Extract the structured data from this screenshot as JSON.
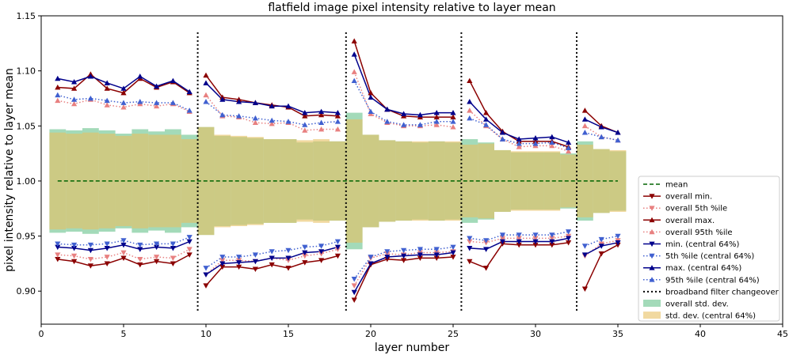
{
  "chart_data": {
    "type": "line",
    "title": "flatfield image pixel intensity relative to layer mean",
    "xlabel": "layer number",
    "ylabel": "pixel intensity relative to layer mean",
    "xlim": [
      0,
      45
    ],
    "ylim": [
      0.87,
      1.15
    ],
    "xticks": [
      "0",
      "5",
      "10",
      "15",
      "20",
      "25",
      "30",
      "35",
      "40",
      "45"
    ],
    "yticks": [
      "0.90",
      "0.95",
      "1.00",
      "1.05",
      "1.10",
      "1.15"
    ],
    "grid": false,
    "legend_position": "lower-right",
    "x": [
      1,
      2,
      3,
      4,
      5,
      6,
      7,
      8,
      9,
      10,
      11,
      12,
      13,
      14,
      15,
      16,
      17,
      18,
      19,
      20,
      21,
      22,
      23,
      24,
      25,
      26,
      27,
      28,
      29,
      30,
      31,
      32,
      33,
      34,
      35
    ],
    "segments": [
      [
        1,
        9
      ],
      [
        10,
        18
      ],
      [
        19,
        25
      ],
      [
        26,
        32
      ],
      [
        33,
        35
      ]
    ],
    "changeovers": [
      9.5,
      18.5,
      25.5,
      32.5
    ],
    "mean": {
      "name": "mean",
      "value": 1.0,
      "x_range": [
        1,
        35
      ]
    },
    "changeover_name": "broadband filter changeover",
    "series": [
      {
        "name": "overall min.",
        "color": "#8b0000",
        "style": "solid",
        "marker": "triangle-down",
        "values": [
          0.929,
          0.927,
          0.923,
          0.925,
          0.93,
          0.924,
          0.927,
          0.925,
          0.933,
          0.905,
          0.922,
          0.922,
          0.92,
          0.924,
          0.921,
          0.926,
          0.928,
          0.932,
          0.892,
          0.924,
          0.929,
          0.928,
          0.93,
          0.93,
          0.931,
          0.927,
          0.921,
          0.943,
          0.942,
          0.942,
          0.942,
          0.944,
          0.902,
          0.934,
          0.942
        ]
      },
      {
        "name": "overall 5th %ile",
        "color": "#e88080",
        "style": "dotted",
        "marker": "triangle-down",
        "values": [
          0.933,
          0.932,
          0.929,
          0.931,
          0.935,
          0.929,
          0.931,
          0.93,
          0.938,
          0.915,
          0.928,
          0.928,
          0.927,
          0.93,
          0.928,
          0.932,
          0.934,
          0.938,
          0.905,
          0.93,
          0.934,
          0.933,
          0.935,
          0.935,
          0.936,
          0.945,
          0.944,
          0.948,
          0.948,
          0.948,
          0.948,
          0.95,
          0.932,
          0.943,
          0.946
        ]
      },
      {
        "name": "overall max.",
        "color": "#8b0000",
        "style": "solid",
        "marker": "triangle-up",
        "values": [
          1.085,
          1.084,
          1.097,
          1.084,
          1.08,
          1.093,
          1.085,
          1.09,
          1.08,
          1.096,
          1.076,
          1.074,
          1.071,
          1.069,
          1.067,
          1.059,
          1.06,
          1.059,
          1.127,
          1.08,
          1.065,
          1.059,
          1.058,
          1.058,
          1.058,
          1.091,
          1.062,
          1.045,
          1.036,
          1.036,
          1.036,
          1.031,
          1.064,
          1.05,
          1.044
        ]
      },
      {
        "name": "overall 95th %ile",
        "color": "#e88080",
        "style": "dotted",
        "marker": "triangle-up",
        "values": [
          1.073,
          1.07,
          1.074,
          1.069,
          1.067,
          1.07,
          1.068,
          1.07,
          1.063,
          1.078,
          1.059,
          1.058,
          1.053,
          1.052,
          1.053,
          1.046,
          1.047,
          1.047,
          1.099,
          1.061,
          1.053,
          1.05,
          1.05,
          1.051,
          1.049,
          1.064,
          1.05,
          1.038,
          1.031,
          1.032,
          1.032,
          1.027,
          1.05,
          1.04,
          1.037
        ]
      },
      {
        "name": "min. (central 64%)",
        "color": "#00008b",
        "style": "solid",
        "marker": "triangle-down",
        "values": [
          0.94,
          0.939,
          0.937,
          0.939,
          0.942,
          0.938,
          0.94,
          0.939,
          0.945,
          0.915,
          0.925,
          0.926,
          0.927,
          0.93,
          0.93,
          0.935,
          0.936,
          0.94,
          0.899,
          0.925,
          0.931,
          0.932,
          0.933,
          0.933,
          0.935,
          0.939,
          0.938,
          0.945,
          0.945,
          0.945,
          0.945,
          0.948,
          0.933,
          0.941,
          0.944
        ]
      },
      {
        "name": "5th %ile (central 64%)",
        "color": "#4060d0",
        "style": "dotted",
        "marker": "triangle-down",
        "values": [
          0.943,
          0.942,
          0.942,
          0.943,
          0.946,
          0.942,
          0.943,
          0.943,
          0.949,
          0.921,
          0.931,
          0.931,
          0.933,
          0.936,
          0.937,
          0.94,
          0.941,
          0.945,
          0.911,
          0.931,
          0.936,
          0.937,
          0.938,
          0.938,
          0.94,
          0.948,
          0.946,
          0.951,
          0.951,
          0.951,
          0.951,
          0.954,
          0.941,
          0.947,
          0.95
        ]
      },
      {
        "name": "max. (central 64%)",
        "color": "#00008b",
        "style": "solid",
        "marker": "triangle-up",
        "values": [
          1.093,
          1.09,
          1.095,
          1.089,
          1.084,
          1.095,
          1.086,
          1.091,
          1.081,
          1.089,
          1.074,
          1.072,
          1.071,
          1.068,
          1.068,
          1.062,
          1.063,
          1.062,
          1.115,
          1.076,
          1.065,
          1.061,
          1.06,
          1.062,
          1.062,
          1.072,
          1.056,
          1.044,
          1.038,
          1.039,
          1.04,
          1.035,
          1.056,
          1.049,
          1.044
        ]
      },
      {
        "name": "95th %ile (central 64%)",
        "color": "#4060d0",
        "style": "dotted",
        "marker": "triangle-up",
        "values": [
          1.078,
          1.074,
          1.075,
          1.073,
          1.071,
          1.072,
          1.071,
          1.071,
          1.064,
          1.072,
          1.06,
          1.059,
          1.057,
          1.055,
          1.054,
          1.051,
          1.053,
          1.054,
          1.091,
          1.063,
          1.054,
          1.051,
          1.051,
          1.054,
          1.054,
          1.057,
          1.051,
          1.038,
          1.034,
          1.034,
          1.035,
          1.03,
          1.044,
          1.04,
          1.037
        ]
      }
    ],
    "bands": [
      {
        "name": "overall std. dev.",
        "color": "#66c28a",
        "values": [
          0.047,
          0.046,
          0.048,
          0.046,
          0.043,
          0.047,
          0.045,
          0.047,
          0.042,
          0.049,
          0.041,
          0.04,
          0.039,
          0.038,
          0.038,
          0.035,
          0.036,
          0.036,
          0.062,
          0.042,
          0.037,
          0.036,
          0.035,
          0.036,
          0.035,
          0.038,
          0.035,
          0.028,
          0.026,
          0.026,
          0.026,
          0.025,
          0.036,
          0.029,
          0.027
        ]
      },
      {
        "name": "std. dev. (central 64%)",
        "color": "#e7c060",
        "values": [
          0.044,
          0.043,
          0.044,
          0.043,
          0.041,
          0.043,
          0.042,
          0.042,
          0.038,
          0.049,
          0.042,
          0.041,
          0.04,
          0.038,
          0.038,
          0.037,
          0.038,
          0.036,
          0.056,
          0.042,
          0.037,
          0.036,
          0.036,
          0.036,
          0.036,
          0.033,
          0.034,
          0.028,
          0.027,
          0.027,
          0.027,
          0.024,
          0.033,
          0.029,
          0.028
        ]
      }
    ]
  }
}
